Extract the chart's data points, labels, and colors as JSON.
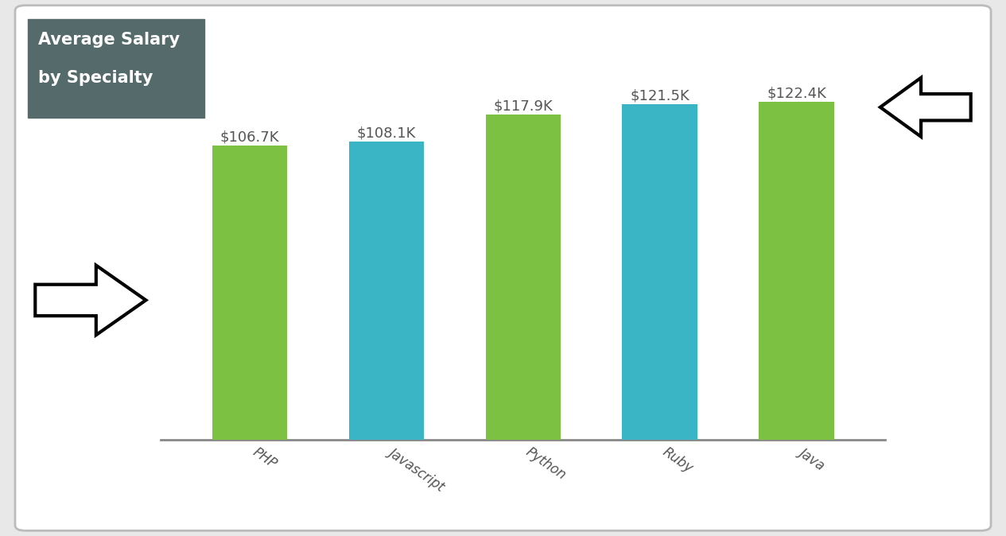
{
  "categories": [
    "PHP",
    "Javascript",
    "Python",
    "Ruby",
    "Java"
  ],
  "values": [
    106.7,
    108.1,
    117.9,
    121.5,
    122.4
  ],
  "labels": [
    "$106.7K",
    "$108.1K",
    "$117.9K",
    "$121.5K",
    "$122.4K"
  ],
  "bar_colors": [
    "#7dc142",
    "#3ab5c6",
    "#7dc142",
    "#3ab5c6",
    "#7dc142"
  ],
  "title_line1": "Average Salary",
  "title_line2": "by Specialty",
  "title_bg_color": "#546a6b",
  "title_text_color": "#ffffff",
  "bg_color": "#ffffff",
  "outer_bg": "#e8e8e8",
  "ylim_min": 98,
  "ylim_max": 130,
  "label_fontsize": 13,
  "tick_fontsize": 12,
  "bar_width": 0.55
}
